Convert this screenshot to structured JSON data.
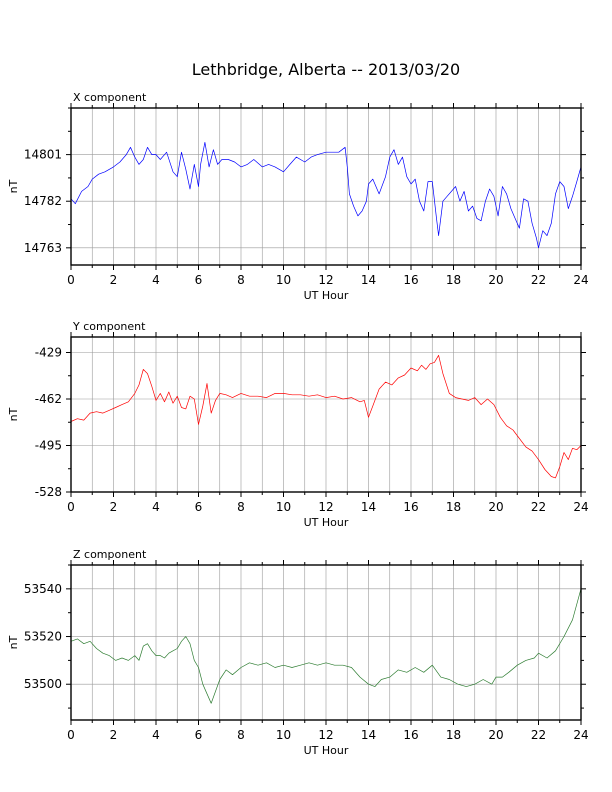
{
  "title": "Lethbridge, Alberta -- 2013/03/20",
  "x_label": "UT Hour",
  "y_label": "nT",
  "chart_data": [
    {
      "type": "line",
      "title": "X component",
      "xlabel": "UT Hour",
      "ylabel": "nT",
      "xlim": [
        0,
        24
      ],
      "ylim": [
        14756,
        14820
      ],
      "x_ticks": [
        0,
        2,
        4,
        6,
        8,
        10,
        12,
        14,
        16,
        18,
        20,
        22,
        24
      ],
      "y_ticks": [
        14763,
        14782,
        14801
      ],
      "grid": true,
      "color": "#0000ff",
      "x": [
        0,
        0.2,
        0.5,
        0.8,
        1.0,
        1.3,
        1.6,
        2.0,
        2.3,
        2.6,
        2.8,
        3.0,
        3.2,
        3.4,
        3.6,
        3.8,
        4.0,
        4.2,
        4.5,
        4.8,
        5.0,
        5.2,
        5.4,
        5.6,
        5.8,
        6.0,
        6.1,
        6.3,
        6.5,
        6.7,
        6.9,
        7.1,
        7.4,
        7.7,
        8.0,
        8.3,
        8.6,
        9.0,
        9.3,
        9.6,
        10.0,
        10.3,
        10.6,
        11.0,
        11.3,
        11.6,
        12.0,
        12.3,
        12.6,
        12.9,
        13.0,
        13.1,
        13.3,
        13.5,
        13.7,
        13.9,
        14.0,
        14.2,
        14.5,
        14.8,
        15.0,
        15.2,
        15.4,
        15.6,
        15.8,
        16.0,
        16.2,
        16.4,
        16.6,
        16.8,
        17.0,
        17.2,
        17.3,
        17.5,
        17.7,
        17.9,
        18.1,
        18.3,
        18.5,
        18.7,
        18.9,
        19.1,
        19.3,
        19.5,
        19.7,
        19.9,
        20.1,
        20.3,
        20.5,
        20.7,
        20.9,
        21.1,
        21.3,
        21.5,
        21.7,
        21.9,
        22.0,
        22.2,
        22.4,
        22.6,
        22.8,
        23.0,
        23.2,
        23.4,
        23.6,
        23.8,
        24.0
      ],
      "y": [
        14783,
        14781,
        14786,
        14788,
        14791,
        14793,
        14794,
        14796,
        14798,
        14801,
        14804,
        14800,
        14797,
        14799,
        14804,
        14801,
        14801,
        14799,
        14802,
        14794,
        14792,
        14802,
        14795,
        14787,
        14797,
        14788,
        14797,
        14806,
        14796,
        14803,
        14797,
        14799,
        14799,
        14798,
        14796,
        14797,
        14799,
        14796,
        14797,
        14796,
        14794,
        14797,
        14800,
        14798,
        14800,
        14801,
        14802,
        14802,
        14802,
        14804,
        14796,
        14785,
        14780,
        14776,
        14778,
        14782,
        14789,
        14791,
        14785,
        14792,
        14800,
        14803,
        14797,
        14800,
        14792,
        14789,
        14791,
        14782,
        14778,
        14790,
        14790,
        14775,
        14768,
        14782,
        14784,
        14786,
        14788,
        14782,
        14786,
        14778,
        14780,
        14775,
        14774,
        14782,
        14787,
        14784,
        14776,
        14788,
        14785,
        14779,
        14775,
        14771,
        14783,
        14782,
        14773,
        14767,
        14763,
        14770,
        14768,
        14773,
        14785,
        14790,
        14788,
        14779,
        14784,
        14790,
        14796
      ]
    },
    {
      "type": "line",
      "title": "Y component",
      "xlabel": "UT Hour",
      "ylabel": "nT",
      "xlim": [
        0,
        24
      ],
      "ylim": [
        -528,
        -418
      ],
      "x_ticks": [
        0,
        2,
        4,
        6,
        8,
        10,
        12,
        14,
        16,
        18,
        20,
        22,
        24
      ],
      "y_ticks": [
        -528,
        -495,
        -462,
        -429
      ],
      "grid": true,
      "color": "#ff0000",
      "x": [
        0,
        0.3,
        0.6,
        0.9,
        1.2,
        1.5,
        1.8,
        2.1,
        2.4,
        2.7,
        3.0,
        3.2,
        3.4,
        3.6,
        3.8,
        4.0,
        4.2,
        4.4,
        4.6,
        4.8,
        5.0,
        5.2,
        5.4,
        5.6,
        5.8,
        6.0,
        6.2,
        6.4,
        6.6,
        6.8,
        7.0,
        7.3,
        7.6,
        8.0,
        8.4,
        8.8,
        9.2,
        9.6,
        10.0,
        10.4,
        10.8,
        11.2,
        11.6,
        12.0,
        12.4,
        12.8,
        13.2,
        13.6,
        13.8,
        14.0,
        14.2,
        14.5,
        14.8,
        15.1,
        15.4,
        15.7,
        16.0,
        16.3,
        16.5,
        16.7,
        16.9,
        17.1,
        17.3,
        17.5,
        17.8,
        18.1,
        18.4,
        18.7,
        19.0,
        19.3,
        19.6,
        19.9,
        20.2,
        20.5,
        20.8,
        21.1,
        21.4,
        21.7,
        22.0,
        22.3,
        22.6,
        22.8,
        23.0,
        23.2,
        23.4,
        23.6,
        23.8,
        24.0
      ],
      "y": [
        -478,
        -476,
        -477,
        -472,
        -471,
        -472,
        -470,
        -468,
        -466,
        -464,
        -458,
        -452,
        -441,
        -444,
        -453,
        -463,
        -458,
        -464,
        -457,
        -465,
        -460,
        -468,
        -469,
        -460,
        -462,
        -480,
        -467,
        -451,
        -472,
        -463,
        -458,
        -459,
        -461,
        -458,
        -460,
        -460,
        -461,
        -458,
        -458,
        -459,
        -459,
        -460,
        -459,
        -461,
        -460,
        -462,
        -461,
        -464,
        -463,
        -475,
        -467,
        -455,
        -450,
        -452,
        -447,
        -445,
        -440,
        -442,
        -438,
        -441,
        -437,
        -436,
        -431,
        -444,
        -458,
        -461,
        -462,
        -463,
        -461,
        -466,
        -462,
        -466,
        -475,
        -481,
        -484,
        -490,
        -496,
        -499,
        -505,
        -512,
        -517,
        -518,
        -510,
        -500,
        -505,
        -497,
        -498,
        -495
      ]
    },
    {
      "type": "line",
      "title": "Z component",
      "xlabel": "UT Hour",
      "ylabel": "nT",
      "xlim": [
        0,
        24
      ],
      "ylim": [
        53485,
        53550
      ],
      "x_ticks": [
        0,
        2,
        4,
        6,
        8,
        10,
        12,
        14,
        16,
        18,
        20,
        22,
        24
      ],
      "y_ticks": [
        53500,
        53520,
        53540
      ],
      "grid": true,
      "color": "#2e7d32",
      "x": [
        0,
        0.3,
        0.6,
        0.9,
        1.2,
        1.5,
        1.8,
        2.1,
        2.4,
        2.7,
        3.0,
        3.2,
        3.4,
        3.6,
        3.8,
        4.0,
        4.2,
        4.4,
        4.6,
        4.8,
        5.0,
        5.2,
        5.4,
        5.6,
        5.8,
        6.0,
        6.2,
        6.4,
        6.6,
        6.8,
        7.0,
        7.3,
        7.6,
        8.0,
        8.4,
        8.8,
        9.2,
        9.6,
        10.0,
        10.4,
        10.8,
        11.2,
        11.6,
        12.0,
        12.4,
        12.8,
        13.2,
        13.6,
        14.0,
        14.3,
        14.6,
        15.0,
        15.4,
        15.8,
        16.2,
        16.6,
        17.0,
        17.4,
        17.8,
        18.2,
        18.6,
        19.0,
        19.4,
        19.8,
        20.0,
        20.3,
        20.6,
        21.0,
        21.4,
        21.8,
        22.0,
        22.4,
        22.8,
        23.2,
        23.6,
        24.0
      ],
      "y": [
        53518,
        53519,
        53517,
        53518,
        53515,
        53513,
        53512,
        53510,
        53511,
        53510,
        53512,
        53510,
        53516,
        53517,
        53514,
        53512,
        53512,
        53511,
        53513,
        53514,
        53515,
        53518,
        53520,
        53517,
        53510,
        53507,
        53500,
        53496,
        53492,
        53497,
        53502,
        53506,
        53504,
        53507,
        53509,
        53508,
        53509,
        53507,
        53508,
        53507,
        53508,
        53509,
        53508,
        53509,
        53508,
        53508,
        53507,
        53503,
        53500,
        53499,
        53502,
        53503,
        53506,
        53505,
        53507,
        53505,
        53508,
        53503,
        53502,
        53500,
        53499,
        53500,
        53502,
        53500,
        53503,
        53503,
        53505,
        53508,
        53510,
        53511,
        53513,
        53511,
        53514,
        53520,
        53527,
        53540
      ]
    }
  ]
}
